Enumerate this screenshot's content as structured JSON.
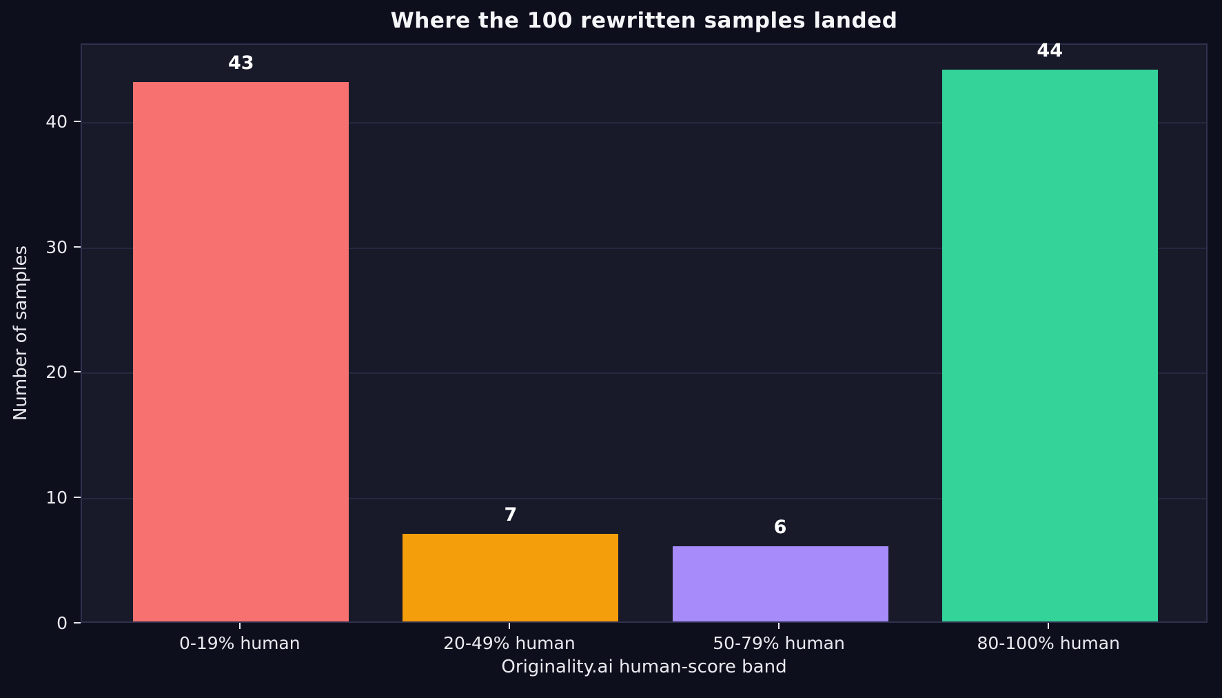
{
  "chart_data": {
    "type": "bar",
    "title": "Where the 100 rewritten samples landed",
    "xlabel": "Originality.ai human-score band",
    "ylabel": "Number of samples",
    "categories": [
      "0-19% human",
      "20-49% human",
      "50-79% human",
      "80-100% human"
    ],
    "values": [
      43,
      7,
      6,
      44
    ],
    "bar_colors": [
      "#f87171",
      "#f59e0b",
      "#a78bfa",
      "#34d399"
    ],
    "ylim": [
      0,
      46.2
    ],
    "yticks": [
      0,
      10,
      20,
      30,
      40
    ],
    "grid": "horizontal",
    "legend": "none",
    "colors": {
      "figure_bg": "#0e0f1d",
      "plot_bg": "#181a29",
      "gridline": "#262840",
      "spine": "#30314f",
      "tick_text": "#e9eaef",
      "title_text": "#f5f6f8",
      "value_label_text": "#ffffff"
    }
  }
}
